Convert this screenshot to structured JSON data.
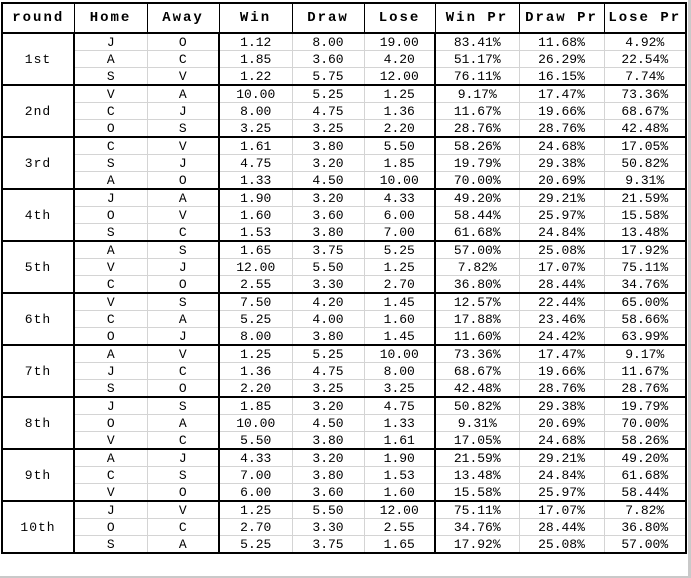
{
  "table": {
    "headers": [
      "round",
      "Home",
      "Away",
      "Win",
      "Draw",
      "Lose",
      "Win Pr",
      "Draw Pr",
      "Lose Pr"
    ],
    "column_keys": [
      "home",
      "away",
      "win",
      "draw",
      "lose",
      "win_pr",
      "draw_pr",
      "lose_pr"
    ],
    "rounds": [
      {
        "round": "1st",
        "matches": [
          {
            "home": "J",
            "away": "O",
            "win": "1.12",
            "draw": "8.00",
            "lose": "19.00",
            "win_pr": "83.41%",
            "draw_pr": "11.68%",
            "lose_pr": "4.92%"
          },
          {
            "home": "A",
            "away": "C",
            "win": "1.85",
            "draw": "3.60",
            "lose": "4.20",
            "win_pr": "51.17%",
            "draw_pr": "26.29%",
            "lose_pr": "22.54%"
          },
          {
            "home": "S",
            "away": "V",
            "win": "1.22",
            "draw": "5.75",
            "lose": "12.00",
            "win_pr": "76.11%",
            "draw_pr": "16.15%",
            "lose_pr": "7.74%"
          }
        ]
      },
      {
        "round": "2nd",
        "matches": [
          {
            "home": "V",
            "away": "A",
            "win": "10.00",
            "draw": "5.25",
            "lose": "1.25",
            "win_pr": "9.17%",
            "draw_pr": "17.47%",
            "lose_pr": "73.36%"
          },
          {
            "home": "C",
            "away": "J",
            "win": "8.00",
            "draw": "4.75",
            "lose": "1.36",
            "win_pr": "11.67%",
            "draw_pr": "19.66%",
            "lose_pr": "68.67%"
          },
          {
            "home": "O",
            "away": "S",
            "win": "3.25",
            "draw": "3.25",
            "lose": "2.20",
            "win_pr": "28.76%",
            "draw_pr": "28.76%",
            "lose_pr": "42.48%"
          }
        ]
      },
      {
        "round": "3rd",
        "matches": [
          {
            "home": "C",
            "away": "V",
            "win": "1.61",
            "draw": "3.80",
            "lose": "5.50",
            "win_pr": "58.26%",
            "draw_pr": "24.68%",
            "lose_pr": "17.05%"
          },
          {
            "home": "S",
            "away": "J",
            "win": "4.75",
            "draw": "3.20",
            "lose": "1.85",
            "win_pr": "19.79%",
            "draw_pr": "29.38%",
            "lose_pr": "50.82%"
          },
          {
            "home": "A",
            "away": "O",
            "win": "1.33",
            "draw": "4.50",
            "lose": "10.00",
            "win_pr": "70.00%",
            "draw_pr": "20.69%",
            "lose_pr": "9.31%"
          }
        ]
      },
      {
        "round": "4th",
        "matches": [
          {
            "home": "J",
            "away": "A",
            "win": "1.90",
            "draw": "3.20",
            "lose": "4.33",
            "win_pr": "49.20%",
            "draw_pr": "29.21%",
            "lose_pr": "21.59%"
          },
          {
            "home": "O",
            "away": "V",
            "win": "1.60",
            "draw": "3.60",
            "lose": "6.00",
            "win_pr": "58.44%",
            "draw_pr": "25.97%",
            "lose_pr": "15.58%"
          },
          {
            "home": "S",
            "away": "C",
            "win": "1.53",
            "draw": "3.80",
            "lose": "7.00",
            "win_pr": "61.68%",
            "draw_pr": "24.84%",
            "lose_pr": "13.48%"
          }
        ]
      },
      {
        "round": "5th",
        "matches": [
          {
            "home": "A",
            "away": "S",
            "win": "1.65",
            "draw": "3.75",
            "lose": "5.25",
            "win_pr": "57.00%",
            "draw_pr": "25.08%",
            "lose_pr": "17.92%"
          },
          {
            "home": "V",
            "away": "J",
            "win": "12.00",
            "draw": "5.50",
            "lose": "1.25",
            "win_pr": "7.82%",
            "draw_pr": "17.07%",
            "lose_pr": "75.11%"
          },
          {
            "home": "C",
            "away": "O",
            "win": "2.55",
            "draw": "3.30",
            "lose": "2.70",
            "win_pr": "36.80%",
            "draw_pr": "28.44%",
            "lose_pr": "34.76%"
          }
        ]
      },
      {
        "round": "6th",
        "matches": [
          {
            "home": "V",
            "away": "S",
            "win": "7.50",
            "draw": "4.20",
            "lose": "1.45",
            "win_pr": "12.57%",
            "draw_pr": "22.44%",
            "lose_pr": "65.00%"
          },
          {
            "home": "C",
            "away": "A",
            "win": "5.25",
            "draw": "4.00",
            "lose": "1.60",
            "win_pr": "17.88%",
            "draw_pr": "23.46%",
            "lose_pr": "58.66%"
          },
          {
            "home": "O",
            "away": "J",
            "win": "8.00",
            "draw": "3.80",
            "lose": "1.45",
            "win_pr": "11.60%",
            "draw_pr": "24.42%",
            "lose_pr": "63.99%"
          }
        ]
      },
      {
        "round": "7th",
        "matches": [
          {
            "home": "A",
            "away": "V",
            "win": "1.25",
            "draw": "5.25",
            "lose": "10.00",
            "win_pr": "73.36%",
            "draw_pr": "17.47%",
            "lose_pr": "9.17%"
          },
          {
            "home": "J",
            "away": "C",
            "win": "1.36",
            "draw": "4.75",
            "lose": "8.00",
            "win_pr": "68.67%",
            "draw_pr": "19.66%",
            "lose_pr": "11.67%"
          },
          {
            "home": "S",
            "away": "O",
            "win": "2.20",
            "draw": "3.25",
            "lose": "3.25",
            "win_pr": "42.48%",
            "draw_pr": "28.76%",
            "lose_pr": "28.76%"
          }
        ]
      },
      {
        "round": "8th",
        "matches": [
          {
            "home": "J",
            "away": "S",
            "win": "1.85",
            "draw": "3.20",
            "lose": "4.75",
            "win_pr": "50.82%",
            "draw_pr": "29.38%",
            "lose_pr": "19.79%"
          },
          {
            "home": "O",
            "away": "A",
            "win": "10.00",
            "draw": "4.50",
            "lose": "1.33",
            "win_pr": "9.31%",
            "draw_pr": "20.69%",
            "lose_pr": "70.00%"
          },
          {
            "home": "V",
            "away": "C",
            "win": "5.50",
            "draw": "3.80",
            "lose": "1.61",
            "win_pr": "17.05%",
            "draw_pr": "24.68%",
            "lose_pr": "58.26%"
          }
        ]
      },
      {
        "round": "9th",
        "matches": [
          {
            "home": "A",
            "away": "J",
            "win": "4.33",
            "draw": "3.20",
            "lose": "1.90",
            "win_pr": "21.59%",
            "draw_pr": "29.21%",
            "lose_pr": "49.20%"
          },
          {
            "home": "C",
            "away": "S",
            "win": "7.00",
            "draw": "3.80",
            "lose": "1.53",
            "win_pr": "13.48%",
            "draw_pr": "24.84%",
            "lose_pr": "61.68%"
          },
          {
            "home": "V",
            "away": "O",
            "win": "6.00",
            "draw": "3.60",
            "lose": "1.60",
            "win_pr": "15.58%",
            "draw_pr": "25.97%",
            "lose_pr": "58.44%"
          }
        ]
      },
      {
        "round": "10th",
        "matches": [
          {
            "home": "J",
            "away": "V",
            "win": "1.25",
            "draw": "5.50",
            "lose": "12.00",
            "win_pr": "75.11%",
            "draw_pr": "17.07%",
            "lose_pr": "7.82%"
          },
          {
            "home": "O",
            "away": "C",
            "win": "2.70",
            "draw": "3.30",
            "lose": "2.55",
            "win_pr": "34.76%",
            "draw_pr": "28.44%",
            "lose_pr": "36.80%"
          },
          {
            "home": "S",
            "away": "A",
            "win": "5.25",
            "draw": "3.75",
            "lose": "1.65",
            "win_pr": "17.92%",
            "draw_pr": "25.08%",
            "lose_pr": "57.00%"
          }
        ]
      }
    ]
  },
  "colors": {
    "border_thick": "#000000",
    "grid_thin": "#d4d4d4",
    "background": "#ffffff",
    "text": "#000000",
    "screenshot_edge": "#c9c9c9"
  }
}
